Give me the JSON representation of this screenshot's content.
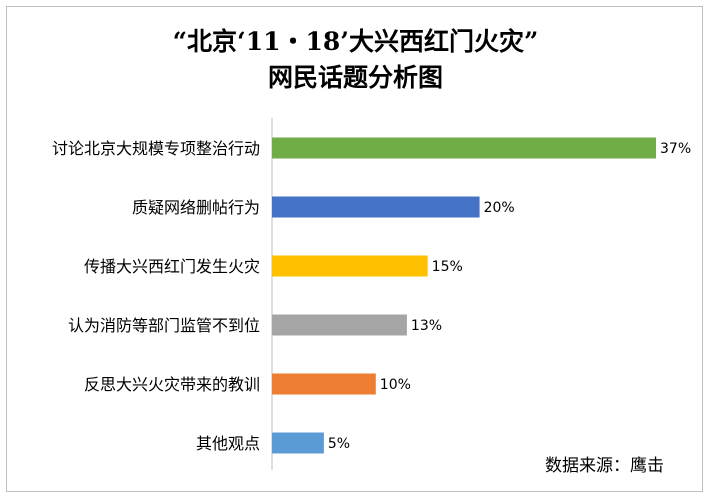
{
  "chart_data": {
    "type": "bar",
    "orientation": "horizontal",
    "title": "“北京‘11・18’大兴西红门火灾”",
    "subtitle": "网民话题分析图",
    "categories": [
      "讨论北京大规模专项整治行动",
      "质疑网络删帖行为",
      "传播大兴西红门发生火灾",
      "认为消防等部门监管不到位",
      "反思大兴火灾带来的教训",
      "其他观点"
    ],
    "values": [
      37,
      20,
      15,
      13,
      10,
      5
    ],
    "value_labels": [
      "37%",
      "20%",
      "15%",
      "13%",
      "10%",
      "5%"
    ],
    "colors": [
      "#70ad47",
      "#4472c4",
      "#ffc000",
      "#a5a5a5",
      "#ed7d31",
      "#5b9bd5"
    ],
    "xlim": [
      0,
      37
    ],
    "grid": false,
    "legend": "none"
  },
  "source": "数据来源：鹰击"
}
